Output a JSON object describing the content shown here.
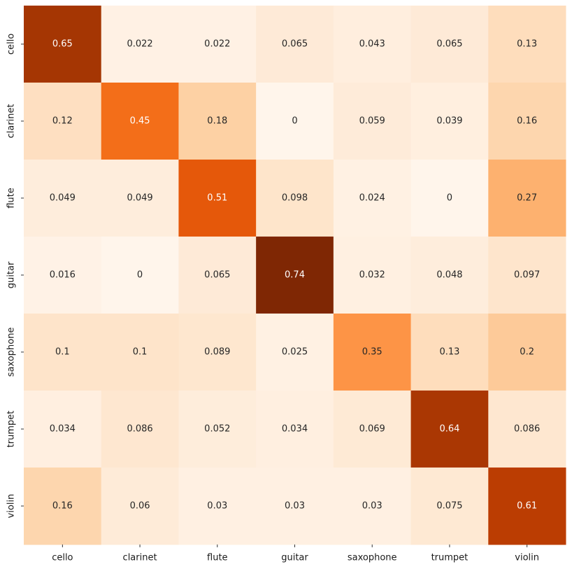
{
  "chart_data": {
    "type": "heatmap",
    "title": "",
    "xlabel": "",
    "ylabel": "",
    "x_categories": [
      "cello",
      "clarinet",
      "flute",
      "guitar",
      "saxophone",
      "trumpet",
      "violin"
    ],
    "y_categories": [
      "cello",
      "clarinet",
      "flute",
      "guitar",
      "saxophone",
      "trumpet",
      "violin"
    ],
    "values": [
      [
        0.65,
        0.022,
        0.022,
        0.065,
        0.043,
        0.065,
        0.13
      ],
      [
        0.12,
        0.45,
        0.18,
        0,
        0.059,
        0.039,
        0.16
      ],
      [
        0.049,
        0.049,
        0.51,
        0.098,
        0.024,
        0,
        0.27
      ],
      [
        0.016,
        0,
        0.065,
        0.74,
        0.032,
        0.048,
        0.097
      ],
      [
        0.1,
        0.1,
        0.089,
        0.025,
        0.35,
        0.13,
        0.2
      ],
      [
        0.034,
        0.086,
        0.052,
        0.034,
        0.069,
        0.64,
        0.086
      ],
      [
        0.16,
        0.06,
        0.03,
        0.03,
        0.03,
        0.075,
        0.61
      ]
    ],
    "labels": [
      [
        "0.65",
        "0.022",
        "0.022",
        "0.065",
        "0.043",
        "0.065",
        "0.13"
      ],
      [
        "0.12",
        "0.45",
        "0.18",
        "0",
        "0.059",
        "0.039",
        "0.16"
      ],
      [
        "0.049",
        "0.049",
        "0.51",
        "0.098",
        "0.024",
        "0",
        "0.27"
      ],
      [
        "0.016",
        "0",
        "0.065",
        "0.74",
        "0.032",
        "0.048",
        "0.097"
      ],
      [
        "0.1",
        "0.1",
        "0.089",
        "0.025",
        "0.35",
        "0.13",
        "0.2"
      ],
      [
        "0.034",
        "0.086",
        "0.052",
        "0.034",
        "0.069",
        "0.64",
        "0.086"
      ],
      [
        "0.16",
        "0.06",
        "0.03",
        "0.03",
        "0.03",
        "0.075",
        "0.61"
      ]
    ],
    "value_range": [
      0,
      0.74
    ],
    "colormap": "Oranges",
    "colors": {
      "low": "#fff5eb",
      "high": "#7f2704",
      "text_dark": "#262626",
      "text_light": "#ffffff"
    },
    "colorbar": false,
    "grid": false
  }
}
